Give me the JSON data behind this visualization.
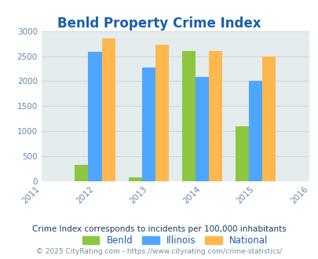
{
  "title": "Benld Property Crime Index",
  "years": [
    2011,
    2012,
    2013,
    2014,
    2015,
    2016
  ],
  "bar_years": [
    2012,
    2013,
    2014,
    2015
  ],
  "benld": [
    325,
    75,
    2600,
    1100
  ],
  "illinois": [
    2580,
    2280,
    2080,
    2000
  ],
  "national": [
    2850,
    2730,
    2600,
    2500
  ],
  "color_benld": "#8dc63f",
  "color_illinois": "#4da6ff",
  "color_national": "#ffb84d",
  "bar_width": 0.25,
  "ylim": [
    0,
    3000
  ],
  "yticks": [
    0,
    500,
    1000,
    1500,
    2000,
    2500,
    3000
  ],
  "bg_color": "#e4ecee",
  "title_color": "#1a5fa8",
  "title_fontsize": 12,
  "legend_labels": [
    "Benld",
    "Illinois",
    "National"
  ],
  "note_text": "Crime Index corresponds to incidents per 100,000 inhabitants",
  "footer_text": "© 2025 CityRating.com - https://www.cityrating.com/crime-statistics/",
  "note_color": "#1a3a5c",
  "footer_color": "#7090a0",
  "note_fontsize": 7.5,
  "footer_fontsize": 6.5,
  "tick_color": "#6688aa",
  "axis_label_fontsize": 7.5,
  "legend_fontsize": 8.5
}
